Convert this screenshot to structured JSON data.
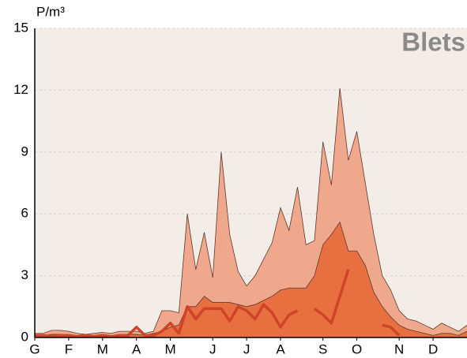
{
  "chart_data": {
    "type": "area",
    "title": "Blets",
    "y_label": "P/m³",
    "x": [
      0,
      1,
      2,
      3,
      4,
      5,
      6,
      7,
      8,
      9,
      10,
      11,
      12,
      13,
      14,
      15,
      16,
      17,
      18,
      19,
      20,
      21,
      22,
      23,
      24,
      25,
      26,
      27,
      28,
      29,
      30,
      31,
      32,
      33,
      34,
      35,
      36,
      37,
      38,
      39,
      40,
      41,
      42,
      43,
      44,
      45,
      46,
      47,
      48,
      49,
      50,
      51
    ],
    "xlim": [
      0,
      51
    ],
    "xticks": [
      {
        "value": 0,
        "label": "G"
      },
      {
        "value": 4,
        "label": "F"
      },
      {
        "value": 8,
        "label": "M"
      },
      {
        "value": 12,
        "label": "A"
      },
      {
        "value": 16,
        "label": "M"
      },
      {
        "value": 21,
        "label": "J"
      },
      {
        "value": 25,
        "label": "J"
      },
      {
        "value": 29,
        "label": "A"
      },
      {
        "value": 34,
        "label": "S"
      },
      {
        "value": 38,
        "label": "O"
      },
      {
        "value": 43,
        "label": "N"
      },
      {
        "value": 47,
        "label": "D"
      }
    ],
    "ylim": [
      0,
      15
    ],
    "yticks": [
      0,
      3,
      6,
      9,
      12,
      15
    ],
    "grid": true,
    "series": [
      {
        "kind": "area",
        "color": "#f0a88c",
        "values": [
          0.2,
          0.2,
          0.35,
          0.35,
          0.3,
          0.2,
          0.15,
          0.2,
          0.25,
          0.2,
          0.3,
          0.3,
          0.3,
          0.2,
          0.3,
          1.3,
          1.3,
          1.2,
          6.0,
          3.3,
          5.1,
          2.9,
          9.0,
          5.0,
          3.2,
          2.5,
          3.0,
          3.8,
          4.6,
          6.3,
          5.2,
          7.3,
          4.5,
          4.7,
          9.5,
          7.4,
          12.1,
          8.6,
          10.0,
          7.5,
          5.0,
          3.0,
          2.3,
          1.3,
          0.9,
          0.8,
          0.6,
          0.4,
          0.7,
          0.5,
          0.3,
          0.6
        ]
      },
      {
        "kind": "area",
        "color": "#e86f40",
        "values": [
          0.1,
          0.1,
          0.15,
          0.15,
          0.1,
          0.1,
          0.1,
          0.1,
          0.15,
          0.1,
          0.1,
          0.15,
          0.15,
          0.1,
          0.2,
          0.3,
          0.5,
          0.6,
          1.5,
          1.5,
          2.0,
          1.7,
          1.7,
          1.7,
          1.6,
          1.5,
          1.6,
          1.8,
          2.0,
          2.3,
          2.4,
          2.4,
          2.4,
          3.0,
          4.5,
          5.0,
          5.6,
          4.2,
          4.2,
          3.5,
          2.2,
          1.5,
          1.0,
          0.6,
          0.4,
          0.3,
          0.2,
          0.1,
          0.2,
          0.2,
          0.1,
          0.3
        ]
      },
      {
        "kind": "line",
        "color": "#cf4429",
        "values": [
          0.1,
          0.1,
          0.05,
          0.1,
          0.1,
          0.05,
          0.1,
          0.05,
          0.1,
          0.05,
          0.1,
          0.1,
          0.5,
          0.1,
          0.1,
          0.3,
          0.7,
          0.2,
          1.5,
          0.9,
          1.4,
          1.4,
          1.4,
          0.8,
          1.5,
          1.3,
          0.9,
          1.6,
          1.2,
          0.5,
          1.1,
          1.3,
          null,
          1.4,
          1.1,
          0.7,
          2.0,
          3.3,
          null,
          null,
          null,
          0.6,
          0.5,
          0.1,
          null,
          null,
          null,
          null,
          null,
          null,
          null,
          null
        ]
      }
    ]
  }
}
